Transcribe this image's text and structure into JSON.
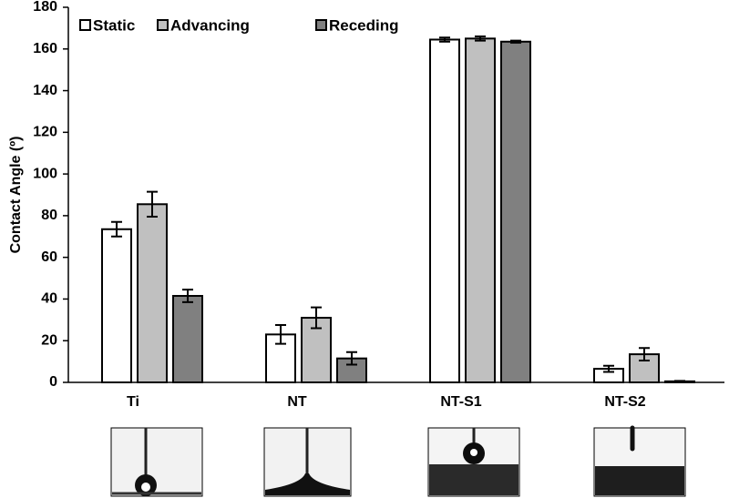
{
  "chart_data": {
    "type": "bar",
    "y_label": "Contact Angle (º)",
    "categories": [
      "Ti",
      "NT",
      "NT-S1",
      "NT-S2"
    ],
    "series": [
      {
        "name": "Static",
        "color": "#ffffff",
        "values": [
          73.5,
          23,
          164.5,
          6.5
        ],
        "errors": [
          3.5,
          4.5,
          1,
          1.5
        ]
      },
      {
        "name": "Advancing",
        "color": "#c0c0c0",
        "values": [
          85.5,
          31,
          165,
          13.5
        ],
        "errors": [
          6,
          5,
          1,
          3
        ]
      },
      {
        "name": "Receding",
        "color": "#808080",
        "values": [
          41.5,
          11.5,
          163.5,
          0.5
        ],
        "errors": [
          3,
          3,
          0.5,
          0.2
        ]
      }
    ],
    "ylim": [
      0,
      180
    ],
    "yticks": [
      0,
      20,
      40,
      60,
      80,
      100,
      120,
      140,
      160,
      180
    ],
    "grid": false,
    "legend": "top-left"
  }
}
